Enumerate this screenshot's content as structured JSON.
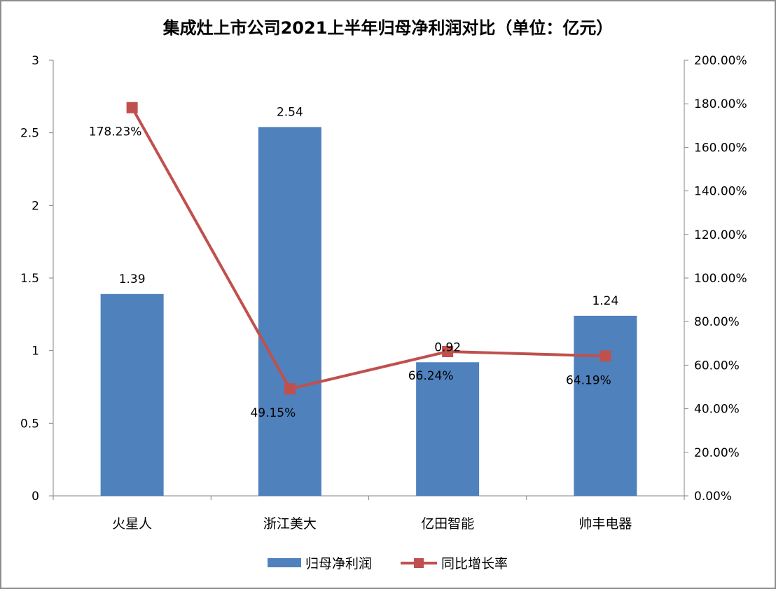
{
  "chart_data": {
    "type": "bar",
    "title": "集成灶上市公司2021上半年归母净利润对比（单位：亿元）",
    "categories": [
      "火星人",
      "浙江美大",
      "亿田智能",
      "帅丰电器"
    ],
    "series": [
      {
        "name": "归母净利润",
        "type": "bar",
        "axis": "left",
        "values": [
          1.39,
          2.54,
          0.92,
          1.24
        ],
        "labels": [
          "1.39",
          "2.54",
          "0.92",
          "1.24"
        ],
        "color": "#4f81bd"
      },
      {
        "name": "同比增长率",
        "type": "line",
        "axis": "right",
        "values": [
          178.23,
          49.15,
          66.24,
          64.19
        ],
        "labels": [
          "178.23%",
          "49.15%",
          "66.24%",
          "64.19%"
        ],
        "color": "#c0504d"
      }
    ],
    "y_left": {
      "range": [
        0,
        3
      ],
      "ticks": [
        0,
        0.5,
        1,
        1.5,
        2,
        2.5,
        3
      ],
      "tick_labels": [
        "0",
        "0.5",
        "1",
        "1.5",
        "2",
        "2.5",
        "3"
      ]
    },
    "y_right": {
      "range": [
        0,
        200
      ],
      "ticks": [
        0,
        20,
        40,
        60,
        80,
        100,
        120,
        140,
        160,
        180,
        200
      ],
      "tick_labels": [
        "0.00%",
        "20.00%",
        "40.00%",
        "60.00%",
        "80.00%",
        "100.00%",
        "120.00%",
        "140.00%",
        "160.00%",
        "180.00%",
        "200.00%"
      ]
    },
    "grid": false,
    "legend": "bottom"
  }
}
